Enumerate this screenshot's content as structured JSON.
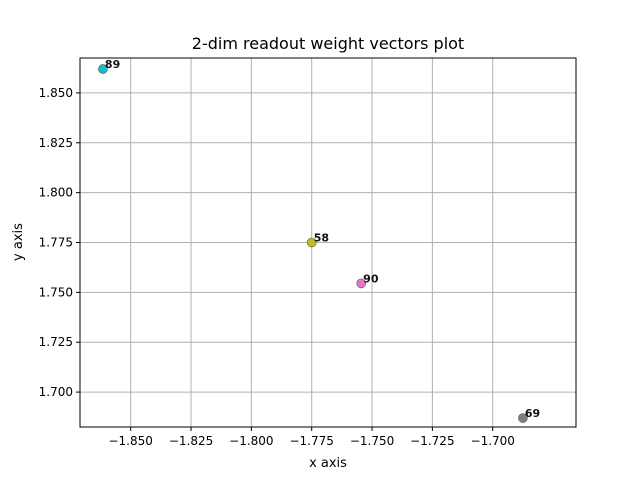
{
  "chart_data": {
    "type": "scatter",
    "title": "2-dim readout weight vectors plot",
    "xlabel": "x axis",
    "ylabel": "y axis",
    "xlim": [
      -1.871,
      -1.6655
    ],
    "ylim": [
      1.6825,
      1.8675
    ],
    "x_ticks": [
      -1.85,
      -1.825,
      -1.8,
      -1.775,
      -1.75,
      -1.725,
      -1.7
    ],
    "x_tick_labels": [
      "−1.850",
      "−1.825",
      "−1.800",
      "−1.775",
      "−1.750",
      "−1.725",
      "−1.700"
    ],
    "y_ticks": [
      1.7,
      1.725,
      1.75,
      1.775,
      1.8,
      1.825,
      1.85
    ],
    "y_tick_labels": [
      "1.700",
      "1.725",
      "1.750",
      "1.775",
      "1.800",
      "1.825",
      "1.850"
    ],
    "grid": true,
    "points": [
      {
        "x": -1.8615,
        "y": 1.862,
        "color": "#17becf"
      },
      {
        "x": -1.775,
        "y": 1.775,
        "color": "#bcbd22"
      },
      {
        "x": -1.7545,
        "y": 1.7545,
        "color": "#e377c2"
      },
      {
        "x": -1.6875,
        "y": 1.687,
        "color": "#7f7f7f"
      }
    ],
    "annotations": [
      {
        "text": "89",
        "x": -1.8615,
        "y": 1.862
      },
      {
        "text": "58",
        "x": -1.775,
        "y": 1.775
      },
      {
        "text": "90",
        "x": -1.7545,
        "y": 1.7545
      },
      {
        "text": "69",
        "x": -1.6875,
        "y": 1.687
      }
    ]
  }
}
